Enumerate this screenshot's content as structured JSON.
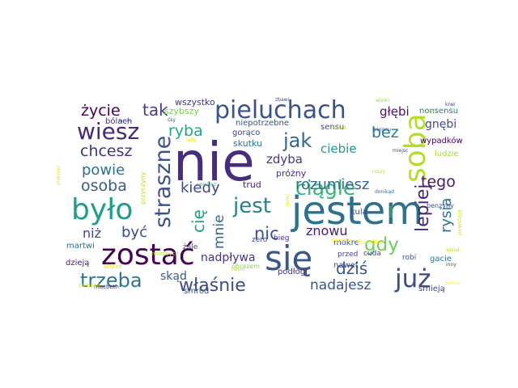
{
  "word_cloud": {
    "words": [
      {
        "text": "nie",
        "color": "#472d7b"
      },
      {
        "text": "jestem",
        "color": "#2c728e"
      },
      {
        "text": "się",
        "color": "#38588c"
      },
      {
        "text": "zostać",
        "color": "#440154"
      },
      {
        "text": "było",
        "color": "#1f9e89"
      },
      {
        "text": "soba",
        "color": "#b5de2b"
      },
      {
        "text": "już",
        "color": "#3e4a89"
      },
      {
        "text": "pieluchach",
        "color": "#3b528b"
      },
      {
        "text": "wiesz",
        "color": "#482878"
      },
      {
        "text": "straszne",
        "color": "#3b528b"
      },
      {
        "text": "jest",
        "color": "#26828e"
      },
      {
        "text": "trzeba",
        "color": "#2a788e"
      },
      {
        "text": "właśnie",
        "color": "#3e4989"
      },
      {
        "text": "jak",
        "color": "#31688e"
      },
      {
        "text": "ciągle",
        "color": "#35b779"
      },
      {
        "text": "lepiej",
        "color": "#482475"
      },
      {
        "text": "gdy",
        "color": "#6ece58"
      },
      {
        "text": "rozumiesz",
        "color": "#31688e"
      },
      {
        "text": "ryba",
        "color": "#22a884"
      },
      {
        "text": "życie",
        "color": "#440154"
      },
      {
        "text": "tak",
        "color": "#433e85"
      },
      {
        "text": "chcesz",
        "color": "#46327e"
      },
      {
        "text": "powie",
        "color": "#2d708e"
      },
      {
        "text": "osoba",
        "color": "#38598c"
      },
      {
        "text": "kiedy",
        "color": "#3f4788"
      },
      {
        "text": "cię",
        "color": "#1fa187"
      },
      {
        "text": "być",
        "color": "#3e4a89"
      },
      {
        "text": "niż",
        "color": "#404688"
      },
      {
        "text": "nic",
        "color": "#3b528b"
      },
      {
        "text": "mnie",
        "color": "#31688e"
      },
      {
        "text": "dziś",
        "color": "#38598c"
      },
      {
        "text": "nadajesz",
        "color": "#39558c"
      },
      {
        "text": "rysia",
        "color": "#2c728e"
      },
      {
        "text": "tego",
        "color": "#481a6c"
      },
      {
        "text": "bez",
        "color": "#287c8e"
      },
      {
        "text": "znowu",
        "color": "#482173"
      },
      {
        "text": "skąd",
        "color": "#38588c"
      },
      {
        "text": "nadpływa",
        "color": "#46337f"
      },
      {
        "text": "głębi",
        "color": "#471365"
      },
      {
        "text": "gnębi",
        "color": "#3e4a89"
      },
      {
        "text": "zdyba",
        "color": "#443a83"
      },
      {
        "text": "ciebie",
        "color": "#1e9b8a"
      },
      {
        "text": "wszystko",
        "color": "#443983"
      },
      {
        "text": "szybszy",
        "color": "#7ad151"
      },
      {
        "text": "bólach",
        "color": "#46327e"
      },
      {
        "text": "gorąco",
        "color": "#3e4989"
      },
      {
        "text": "niepotrzebne",
        "color": "#3b528b"
      },
      {
        "text": "sensu",
        "color": "#404688"
      },
      {
        "text": "skutku",
        "color": "#2a788e"
      },
      {
        "text": "próżny",
        "color": "#46327e"
      },
      {
        "text": "trud",
        "color": "#482475"
      },
      {
        "text": "nonsensu",
        "color": "#287c8e"
      },
      {
        "text": "wypadków",
        "color": "#440154"
      },
      {
        "text": "ludzie",
        "color": "#a5db36"
      },
      {
        "text": "benzyny",
        "color": "#3b528b"
      },
      {
        "text": "kula",
        "color": "#3f4788"
      },
      {
        "text": "zero",
        "color": "#3e4a89"
      },
      {
        "text": "bieg",
        "color": "#472f7d"
      },
      {
        "text": "mokre",
        "color": "#3b528b"
      },
      {
        "text": "podłogi",
        "color": "#46327e"
      },
      {
        "text": "nawet",
        "color": "#3e4989"
      },
      {
        "text": "przed",
        "color": "#404688"
      },
      {
        "text": "cuda",
        "color": "#3e4a89"
      },
      {
        "text": "robi",
        "color": "#3b528b"
      },
      {
        "text": "gacie",
        "color": "#2c728e"
      },
      {
        "text": "śmieją",
        "color": "#404688"
      },
      {
        "text": "martwi",
        "color": "#2d708e"
      },
      {
        "text": "dzieją",
        "color": "#482173"
      },
      {
        "text": "smród",
        "color": "#3b528b"
      },
      {
        "text": "żale",
        "color": "#3e4a89"
      },
      {
        "text": "obrazem",
        "color": "#8fd744"
      },
      {
        "text": "zbiorniku",
        "color": "#fde725"
      },
      {
        "text": "damno",
        "color": "#fde725"
      },
      {
        "text": "rollsroyce",
        "color": "#c2df23"
      },
      {
        "text": "przyczyny",
        "color": "#b8de29"
      },
      {
        "text": "zniknieć",
        "color": "#dfe318"
      },
      {
        "text": "skórze",
        "color": "#dfe318"
      },
      {
        "text": "macbeth",
        "color": "#472d7b"
      },
      {
        "text": "zamsze",
        "color": "#d2e21b"
      },
      {
        "text": "wielki",
        "color": "#a0da39"
      },
      {
        "text": "miejscu",
        "color": "#3b528b"
      },
      {
        "text": "krwi",
        "color": "#404688"
      },
      {
        "text": "tym",
        "color": "#90d743"
      },
      {
        "text": "znikąd",
        "color": "#c2df23"
      },
      {
        "text": "ruszy",
        "color": "#c2df23"
      },
      {
        "text": "donikąd",
        "color": "#31688e"
      },
      {
        "text": "powiesz",
        "color": "#37b878"
      },
      {
        "text": "miejsc",
        "color": "#3e4a89"
      },
      {
        "text": "powstają",
        "color": "#d8e219"
      },
      {
        "text": "wisiał",
        "color": "#bddf26"
      },
      {
        "text": "inny",
        "color": "#404688"
      },
      {
        "text": "końcu",
        "color": "#fde725"
      },
      {
        "text": "tenis",
        "color": "#5ec962"
      },
      {
        "text": "zbawi",
        "color": "#3e4a89"
      },
      {
        "text": "lady",
        "color": "#dfe318"
      },
      {
        "text": "jeżeć",
        "color": "#dfe318"
      },
      {
        "text": "łazem",
        "color": "#3b528b"
      },
      {
        "text": "ćsy",
        "color": "#404688"
      },
      {
        "text": "twym",
        "color": "#bddf26"
      }
    ]
  }
}
